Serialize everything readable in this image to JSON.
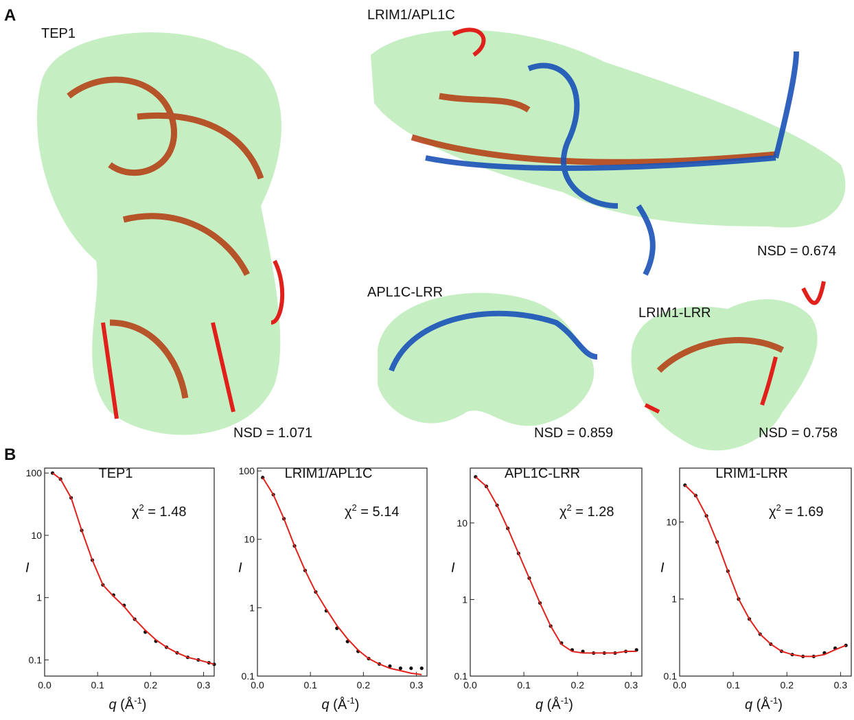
{
  "panel_a": {
    "label": "A",
    "structures": [
      {
        "name": "TEP1",
        "nsd": "NSD = 1.071"
      },
      {
        "name": "LRIM1/APL1C",
        "nsd": "NSD = 0.674"
      },
      {
        "name": "APL1C-LRR",
        "nsd": "NSD = 0.859"
      },
      {
        "name": "LRIM1-LRR",
        "nsd": "NSD = 0.758"
      }
    ]
  },
  "panel_b": {
    "label": "B"
  },
  "chart_data": [
    {
      "type": "line",
      "title": "TEP1",
      "annotation": [
        "χ",
        "2",
        " = 1.48"
      ],
      "xlabel": [
        "q",
        " (Å",
        "-1",
        ")"
      ],
      "ylabel": "I",
      "y_scale": "log",
      "x": [
        0.015,
        0.03,
        0.05,
        0.07,
        0.09,
        0.11,
        0.13,
        0.15,
        0.17,
        0.19,
        0.21,
        0.23,
        0.25,
        0.27,
        0.29,
        0.31,
        0.32
      ],
      "series": [
        {
          "color": "#111111",
          "values": [
            100,
            80,
            40,
            12,
            4,
            1.6,
            1.1,
            0.75,
            0.45,
            0.28,
            0.2,
            0.16,
            0.13,
            0.11,
            0.1,
            0.09,
            0.085
          ]
        },
        {
          "color": "#e0201b",
          "values": [
            100,
            80,
            40,
            12,
            4,
            1.6,
            1.05,
            0.72,
            0.45,
            0.3,
            0.21,
            0.16,
            0.13,
            0.11,
            0.1,
            0.09,
            0.085
          ]
        }
      ],
      "xlim": [
        0,
        0.32
      ],
      "xticks": [
        {
          "value": 0,
          "label": "0.0"
        },
        0.1,
        0.2,
        0.3
      ],
      "ylim": [
        0.055,
        120
      ],
      "yticks": [
        0.1,
        1,
        10,
        100
      ]
    },
    {
      "type": "line",
      "title": "LRIM1/APL1C",
      "annotation": [
        "χ",
        "2",
        " = 5.14"
      ],
      "xlabel": [
        "q",
        " (Å",
        "-1",
        ")"
      ],
      "ylabel": "I",
      "y_scale": "log",
      "x": [
        0.01,
        0.03,
        0.05,
        0.07,
        0.09,
        0.11,
        0.13,
        0.15,
        0.17,
        0.19,
        0.21,
        0.23,
        0.25,
        0.27,
        0.29,
        0.31
      ],
      "series": [
        {
          "color": "#111111",
          "values": [
            80,
            45,
            20,
            8,
            3.5,
            1.7,
            0.9,
            0.5,
            0.32,
            0.23,
            0.18,
            0.15,
            0.14,
            0.13,
            0.13,
            0.13
          ]
        },
        {
          "color": "#e0201b",
          "values": [
            80,
            45,
            20,
            8,
            3.5,
            1.7,
            0.95,
            0.55,
            0.35,
            0.24,
            0.18,
            0.15,
            0.13,
            0.12,
            0.11,
            0.105
          ]
        }
      ],
      "xlim": [
        0,
        0.32
      ],
      "xticks": [
        {
          "value": 0,
          "label": "0.0"
        },
        0.1,
        0.2,
        0.3
      ],
      "ylim": [
        0.1,
        110
      ],
      "yticks": [
        0.1,
        1,
        10,
        100
      ]
    },
    {
      "type": "line",
      "title": "APL1C-LRR",
      "annotation": [
        "χ",
        "2",
        " = 1.28"
      ],
      "xlabel": [
        "q",
        " (Å",
        "-1",
        ")"
      ],
      "ylabel": "I",
      "y_scale": "log",
      "x": [
        0.01,
        0.03,
        0.05,
        0.07,
        0.09,
        0.11,
        0.13,
        0.15,
        0.17,
        0.19,
        0.21,
        0.23,
        0.25,
        0.27,
        0.29,
        0.31
      ],
      "series": [
        {
          "color": "#111111",
          "values": [
            40,
            30,
            17,
            8.5,
            4,
            1.9,
            0.9,
            0.45,
            0.27,
            0.22,
            0.21,
            0.2,
            0.2,
            0.2,
            0.21,
            0.22
          ]
        },
        {
          "color": "#e0201b",
          "values": [
            40,
            30,
            17,
            8.5,
            4,
            1.9,
            0.9,
            0.45,
            0.26,
            0.21,
            0.2,
            0.2,
            0.2,
            0.2,
            0.21,
            0.21
          ]
        }
      ],
      "xlim": [
        0,
        0.32
      ],
      "xticks": [
        {
          "value": 0,
          "label": "0.0"
        },
        0.1,
        0.2,
        0.3
      ],
      "ylim": [
        0.1,
        52
      ],
      "yticks": [
        0.1,
        1,
        10
      ]
    },
    {
      "type": "line",
      "title": "LRIM1-LRR",
      "annotation": [
        "χ",
        "2",
        " = 1.69"
      ],
      "xlabel": [
        "q",
        " (Å",
        "-1",
        ")"
      ],
      "ylabel": "I",
      "y_scale": "log",
      "x": [
        0.01,
        0.03,
        0.05,
        0.07,
        0.09,
        0.11,
        0.13,
        0.15,
        0.17,
        0.19,
        0.21,
        0.23,
        0.25,
        0.27,
        0.29,
        0.31
      ],
      "series": [
        {
          "color": "#111111",
          "values": [
            30,
            22,
            12,
            5.5,
            2.3,
            1.0,
            0.55,
            0.35,
            0.26,
            0.21,
            0.19,
            0.18,
            0.18,
            0.2,
            0.23,
            0.25
          ]
        },
        {
          "color": "#e0201b",
          "values": [
            30,
            22,
            12,
            5.5,
            2.3,
            1.0,
            0.55,
            0.35,
            0.26,
            0.21,
            0.19,
            0.18,
            0.18,
            0.19,
            0.22,
            0.25
          ]
        }
      ],
      "xlim": [
        0,
        0.32
      ],
      "xticks": [
        {
          "value": 0,
          "label": "0.0"
        },
        0.1,
        0.2,
        0.3
      ],
      "ylim": [
        0.1,
        50
      ],
      "yticks": [
        0.1,
        1,
        10
      ]
    }
  ]
}
